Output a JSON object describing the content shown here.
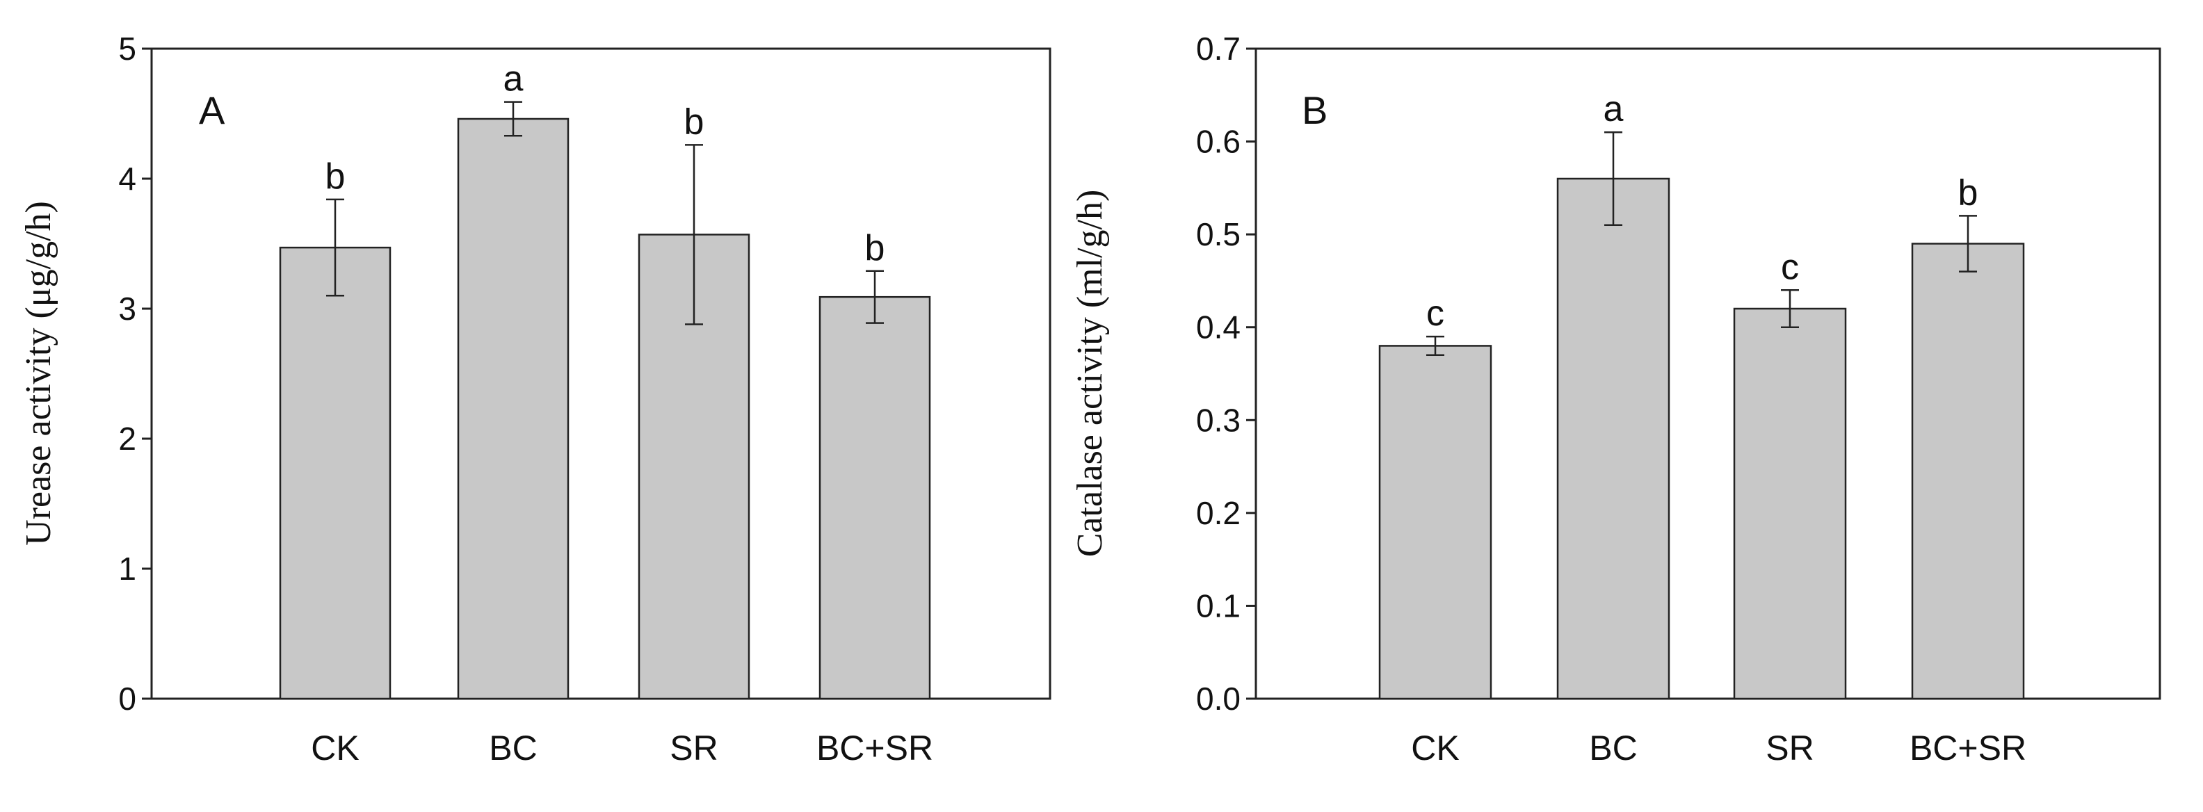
{
  "chart_data": [
    {
      "type": "bar",
      "panel_label": "A",
      "ylabel": "Urease activity (μg/g/h)",
      "xlabel": "",
      "categories": [
        "CK",
        "BC",
        "SR",
        "BC+SR"
      ],
      "values": [
        3.47,
        4.46,
        3.57,
        3.09
      ],
      "errors": [
        0.37,
        0.13,
        0.69,
        0.2
      ],
      "significance": [
        "b",
        "a",
        "b",
        "b"
      ],
      "ylim": [
        0,
        5
      ],
      "yticks": [
        "0",
        "1",
        "2",
        "3",
        "4",
        "5"
      ],
      "bar_color": "#c8c8c8",
      "grid": false
    },
    {
      "type": "bar",
      "panel_label": "B",
      "ylabel": "Catalase activity (ml/g/h)",
      "xlabel": "",
      "categories": [
        "CK",
        "BC",
        "SR",
        "BC+SR"
      ],
      "values": [
        0.38,
        0.56,
        0.42,
        0.49
      ],
      "errors": [
        0.01,
        0.05,
        0.02,
        0.03
      ],
      "significance": [
        "c",
        "a",
        "c",
        "b"
      ],
      "ylim": [
        0,
        0.7
      ],
      "yticks": [
        "0.0",
        "0.1",
        "0.2",
        "0.3",
        "0.4",
        "0.5",
        "0.6",
        "0.7"
      ],
      "bar_color": "#c8c8c8",
      "grid": false
    }
  ]
}
